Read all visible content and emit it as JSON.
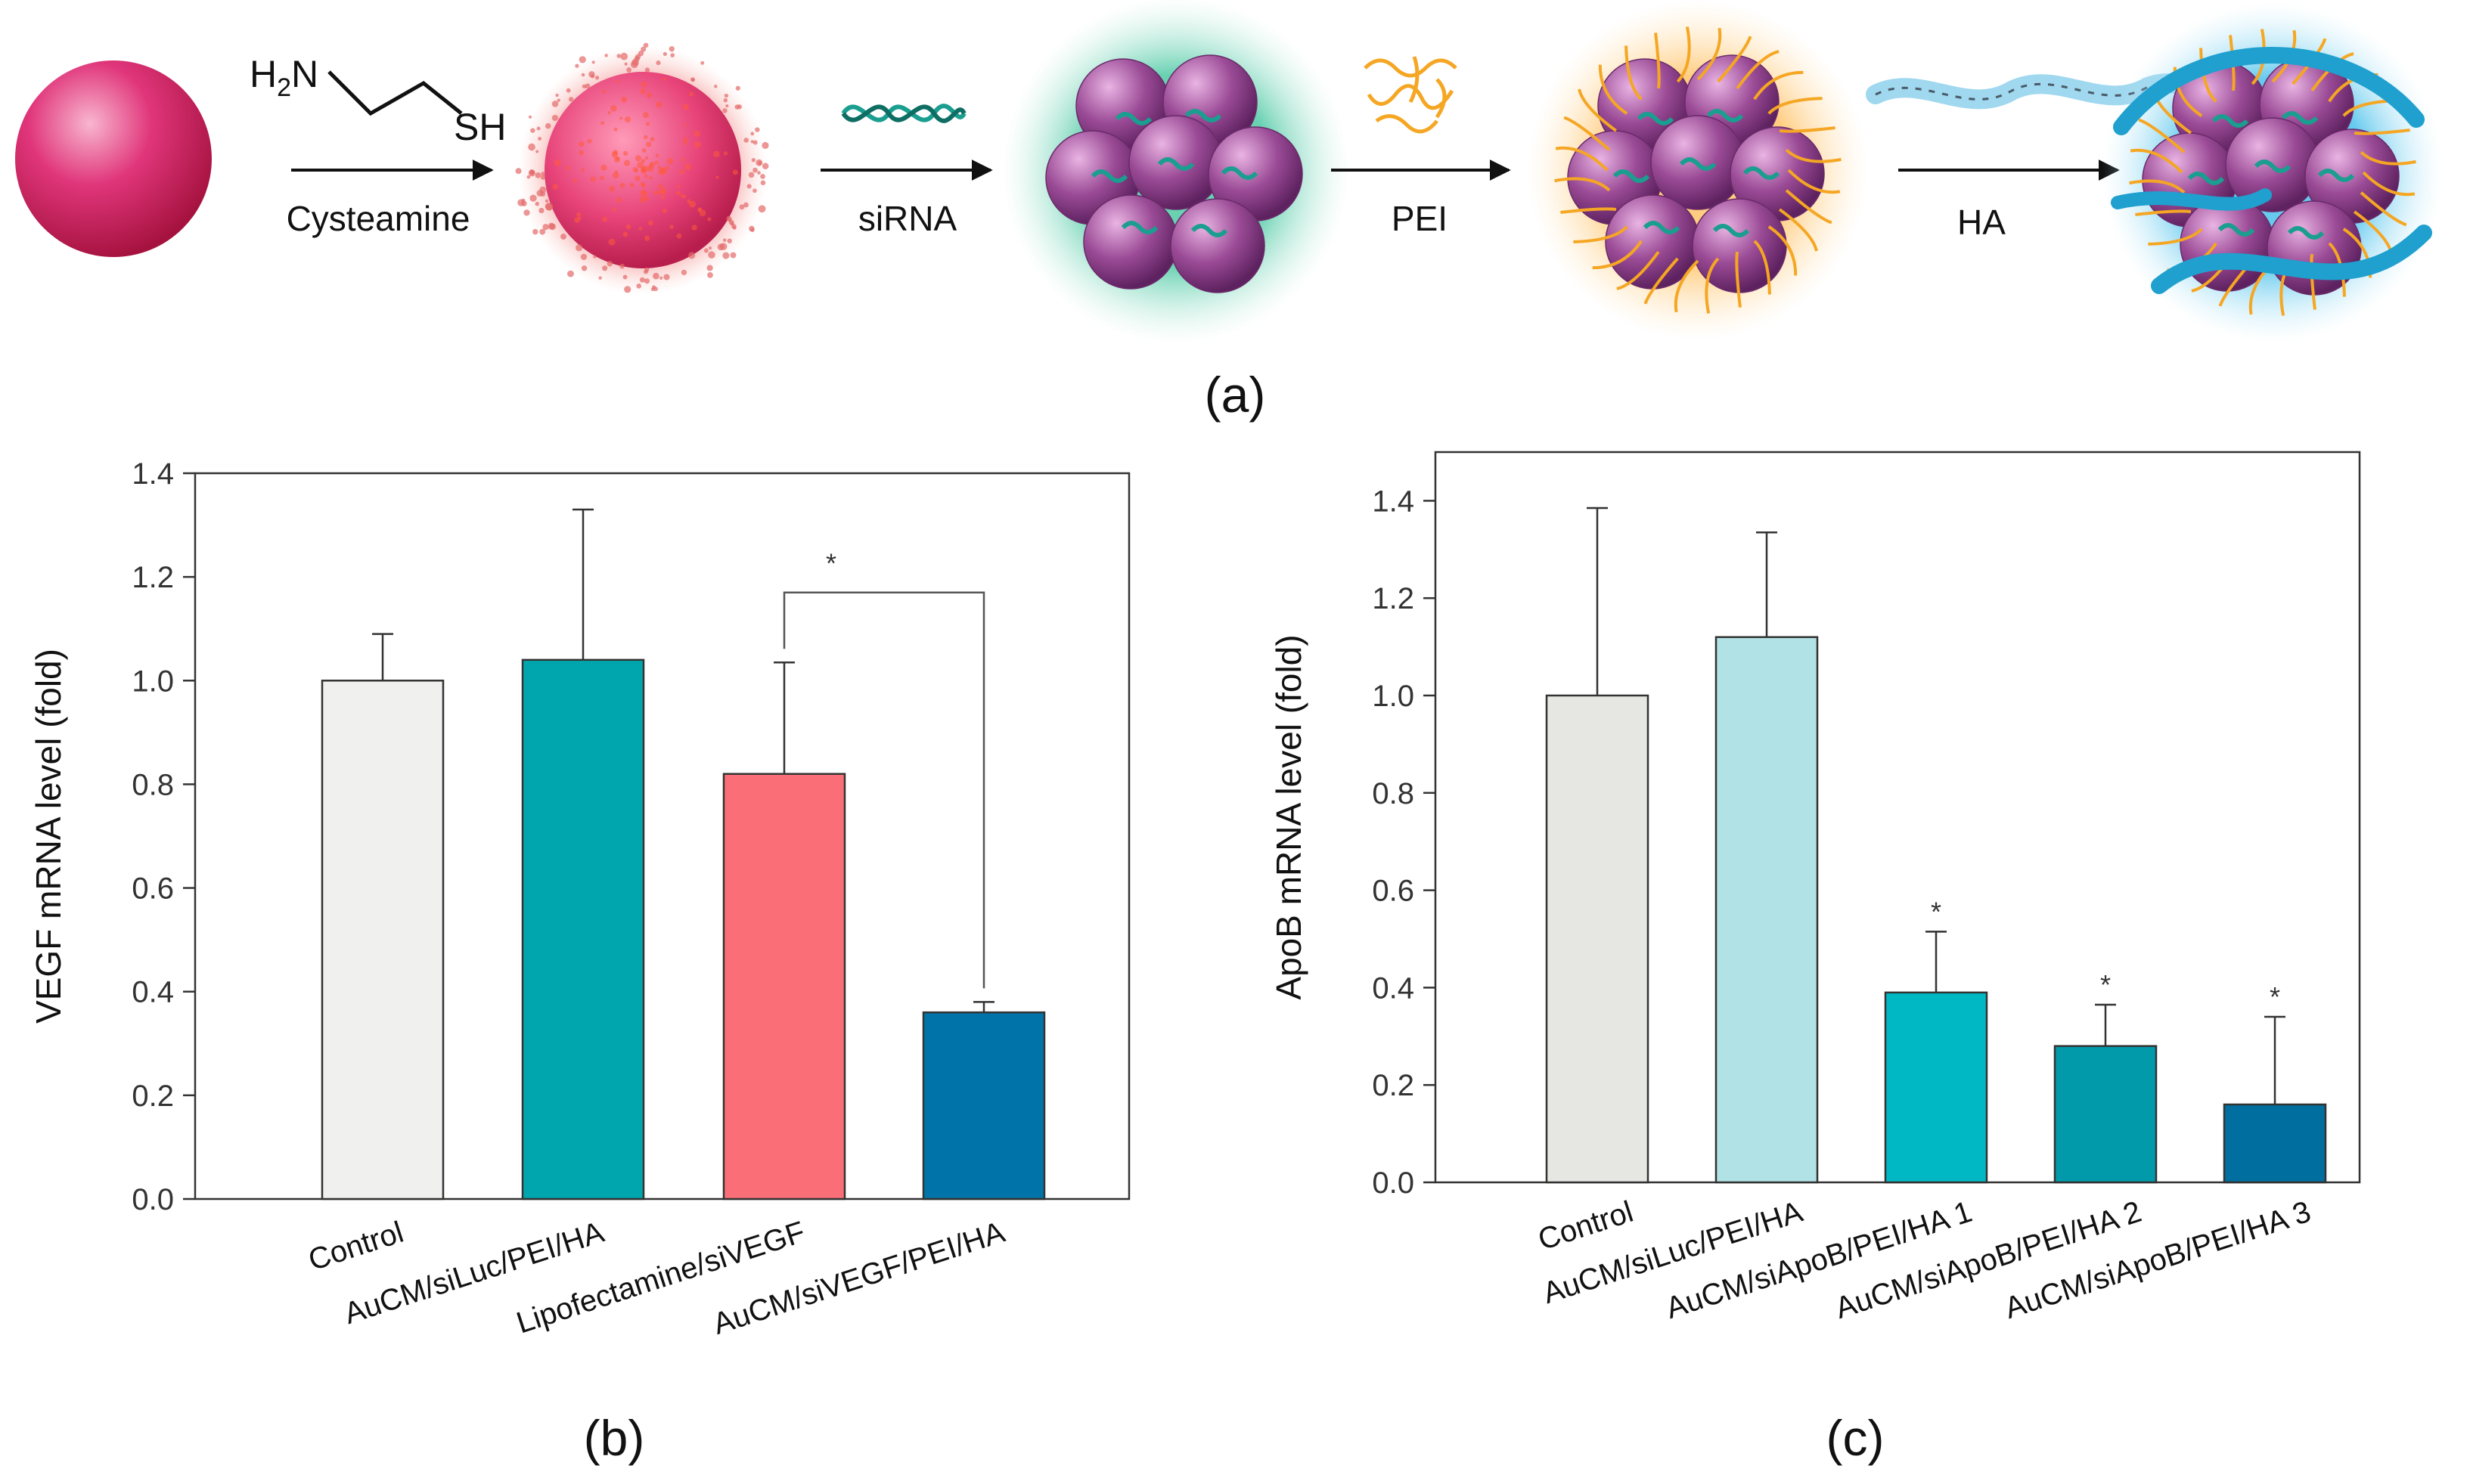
{
  "scheme": {
    "amine_label": "H2N",
    "thiol_label": "SH",
    "steps": [
      {
        "label": "Cysteamine"
      },
      {
        "label": "siRNA"
      },
      {
        "label": "PEI"
      },
      {
        "label": "HA"
      }
    ],
    "panel_label": "(a)",
    "colors": {
      "gold_core": "#d81b60",
      "sirna": "#1a9e8f",
      "pei": "#f5a623",
      "ha": "#29a9d6",
      "particle": "#8e3a8a"
    }
  },
  "chart_data": [
    {
      "type": "bar",
      "panel_label": "(b)",
      "title": "",
      "xlabel": "",
      "ylabel": "VEGF mRNA level (fold)",
      "ylim": [
        0,
        1.4
      ],
      "yticks": [
        "0.0",
        "0.2",
        "0.4",
        "0.6",
        "0.8",
        "1.0",
        "1.2",
        "1.4"
      ],
      "grid": false,
      "categories": [
        "Control",
        "AuCM/siLuc/PEI/HA",
        "Lipofectamine/siVEGF",
        "AuCM/siVEGF/PEI/HA"
      ],
      "values": [
        1.0,
        1.04,
        0.82,
        0.36
      ],
      "errors": [
        0.09,
        0.29,
        0.215,
        0.02
      ],
      "bar_colors": [
        "#f0f0ee",
        "#00a6ae",
        "#fa6e78",
        "#0074a8"
      ],
      "significance": {
        "from": 2,
        "to": 3,
        "level": 1.17,
        "label": "*"
      }
    },
    {
      "type": "bar",
      "panel_label": "(c)",
      "title": "",
      "xlabel": "",
      "ylabel": "ApoB mRNA level (fold)",
      "ylim": [
        0,
        1.5
      ],
      "yticks": [
        "0.0",
        "0.2",
        "0.4",
        "0.6",
        "0.8",
        "1.0",
        "1.2",
        "1.4"
      ],
      "grid": false,
      "categories": [
        "Control",
        "AuCM/siLuc/PEI/HA",
        "AuCM/siApoB/PEI/HA 1",
        "AuCM/siApoB/PEI/HA 2",
        "AuCM/siApoB/PEI/HA 3"
      ],
      "values": [
        1.0,
        1.12,
        0.39,
        0.28,
        0.16
      ],
      "errors": [
        0.385,
        0.215,
        0.125,
        0.085,
        0.18
      ],
      "bar_colors": [
        "#e6e6e2",
        "#b0e2e6",
        "#00b8c4",
        "#009aaa",
        "#006e9e"
      ],
      "marks": [
        "",
        "",
        "*",
        "*",
        "*"
      ]
    }
  ]
}
